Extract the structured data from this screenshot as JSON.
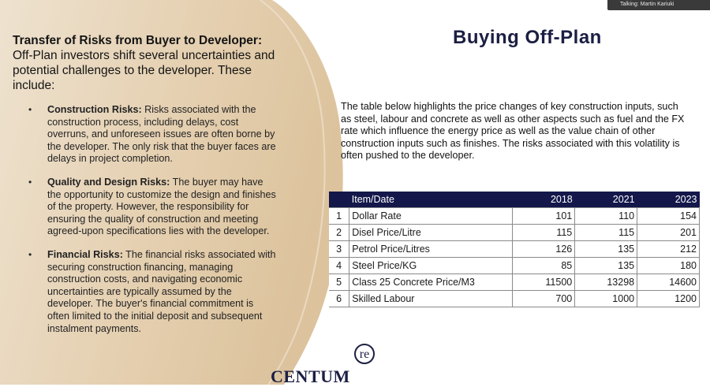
{
  "meeting": {
    "talking_label": "Talking: Martin Kariuki"
  },
  "left": {
    "heading": "Transfer of Risks from Buyer to Developer:",
    "intro": "Off-Plan investors shift several uncertainties and potential challenges to the developer. These include:",
    "risks": [
      {
        "title": "Construction Risks:",
        "text": " Risks associated with the construction process, including delays, cost overruns, and unforeseen issues are often borne by the developer. The only risk that the buyer faces are delays in project completion."
      },
      {
        "title": "Quality and Design Risks:",
        "text": " The buyer may have the opportunity to customize the design and finishes of the property. However, the responsibility for ensuring the quality of construction and meeting agreed-upon specifications lies with the developer."
      },
      {
        "title": "Financial Risks:",
        "text": " The financial risks associated with securing construction financing, managing construction costs, and navigating economic uncertainties are typically assumed by the developer. The buyer's financial commitment  is often limited to the initial deposit and subsequent instalment payments."
      }
    ]
  },
  "right": {
    "title": "Buying Off-Plan",
    "description": "The table below highlights the price changes of key construction inputs, such as steel, labour and concrete  as well as other aspects such as fuel and the FX rate which influence the energy price as well as the value chain of other construction inputs such as finishes. The risks associated with this volatility is often pushed to the developer."
  },
  "table": {
    "headers": [
      "",
      "Item/Date",
      "2018",
      "2021",
      "2023"
    ],
    "rows": [
      [
        "1",
        "Dollar Rate",
        "101",
        "110",
        "154"
      ],
      [
        "2",
        "Disel Price/Litre",
        "115",
        "115",
        "201"
      ],
      [
        "3",
        "Petrol Price/Litres",
        "126",
        "135",
        "212"
      ],
      [
        "4",
        "Steel Price/KG",
        "85",
        "135",
        "180"
      ],
      [
        "5",
        "Class 25 Concrete Price/M3",
        "11500",
        "13298",
        "14600"
      ],
      [
        "6",
        "Skilled Labour",
        "700",
        "1000",
        "1200"
      ]
    ]
  },
  "logo": {
    "word": "CENTUM",
    "mark": "re"
  },
  "colors": {
    "navy": "#13174a",
    "beige": "#e6d3b8"
  }
}
